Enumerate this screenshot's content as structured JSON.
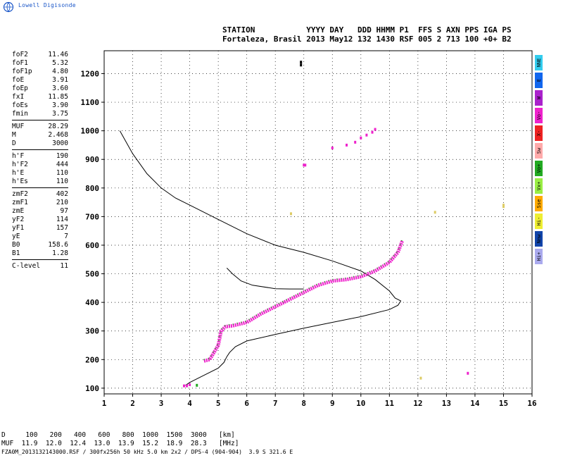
{
  "header": {
    "logo_text": "Lowell Digisonde",
    "station_line1": "STATION           YYYY DAY   DDD HHMM P1  FFS S AXN PPS IGA PS",
    "station_line2": "Fortaleza, Brasil 2013 May12 132 1430 RSF 005 2 713 100 +0+ B2"
  },
  "parameters": [
    [
      {
        "k": "foF2",
        "v": "11.46"
      },
      {
        "k": "foF1",
        "v": "5.32"
      },
      {
        "k": "foF1p",
        "v": "4.80"
      },
      {
        "k": "foE",
        "v": "3.91"
      },
      {
        "k": "foEp",
        "v": "3.60"
      },
      {
        "k": "fxI",
        "v": "11.85"
      },
      {
        "k": "foEs",
        "v": "3.90"
      },
      {
        "k": "fmin",
        "v": "3.75"
      }
    ],
    [
      {
        "k": "MUF",
        "v": "28.29"
      },
      {
        "k": "M",
        "v": "2.468"
      },
      {
        "k": "D",
        "v": "3000"
      }
    ],
    [
      {
        "k": "h'F",
        "v": "190"
      },
      {
        "k": "h'F2",
        "v": "444"
      },
      {
        "k": "h'E",
        "v": "110"
      },
      {
        "k": "h'Es",
        "v": "110"
      }
    ],
    [
      {
        "k": "zmF2",
        "v": "402"
      },
      {
        "k": "zmF1",
        "v": "210"
      },
      {
        "k": "zmE",
        "v": "97"
      },
      {
        "k": "yF2",
        "v": "114"
      },
      {
        "k": "yF1",
        "v": "157"
      },
      {
        "k": "yE",
        "v": "7"
      },
      {
        "k": "B0",
        "v": "158.6"
      },
      {
        "k": "B1",
        "v": "1.28"
      }
    ],
    [
      {
        "k": "C-level",
        "v": "11"
      }
    ]
  ],
  "legend": [
    {
      "label": "NNE",
      "color": "#33ccee"
    },
    {
      "label": "E",
      "color": "#1166ee"
    },
    {
      "label": "W",
      "color": "#aa22cc"
    },
    {
      "label": "Vo-",
      "color": "#ee22cc"
    },
    {
      "label": "X-",
      "color": "#ee2222"
    },
    {
      "label": "Sw",
      "color": "#ffaaaa"
    },
    {
      "label": "Vo+",
      "color": "#22aa22"
    },
    {
      "label": "Vx+",
      "color": "#99ee44"
    },
    {
      "label": "Sse",
      "color": "#ffaa00"
    },
    {
      "label": "Hi-",
      "color": "#eeee33"
    },
    {
      "label": "Nnw",
      "color": "#1144aa"
    },
    {
      "label": "Hi+",
      "color": "#aaaaee"
    }
  ],
  "muf_table": {
    "row_d": "D     100   200   400   600   800  1000  1500  3000   [km]",
    "row_muf": "MUF  11.9  12.0  12.4  13.0  13.9  15.2  18.9  28.3   [MHz]"
  },
  "footer": "FZA0M_2013132143000.RSF / 300fx256h 50 kHz 5.0 km 2x2 / DPS-4 (904-904)  3.9 S 321.6 E",
  "chart_data": {
    "type": "scatter",
    "xlim": [
      1,
      16
    ],
    "ylim": [
      80,
      1280
    ],
    "xticks": [
      1,
      2,
      3,
      4,
      5,
      6,
      7,
      8,
      9,
      10,
      11,
      12,
      13,
      14,
      15,
      16
    ],
    "yticks": [
      100,
      200,
      300,
      400,
      500,
      600,
      700,
      800,
      900,
      1000,
      1100,
      1200
    ],
    "grid": true,
    "series": [
      {
        "type": "line",
        "color": "#000000",
        "points": [
          [
            1.55,
            1000
          ],
          [
            2,
            920
          ],
          [
            2.5,
            850
          ],
          [
            3,
            800
          ],
          [
            3.5,
            765
          ],
          [
            4,
            740
          ],
          [
            5,
            690
          ],
          [
            6,
            640
          ],
          [
            7,
            600
          ],
          [
            8,
            575
          ],
          [
            9,
            545
          ],
          [
            10,
            510
          ],
          [
            10.5,
            480
          ],
          [
            11,
            440
          ],
          [
            11.2,
            415
          ],
          [
            11.4,
            405
          ],
          [
            11.3,
            390
          ],
          [
            11,
            375
          ],
          [
            10,
            350
          ],
          [
            9,
            330
          ],
          [
            8,
            310
          ],
          [
            7,
            288
          ],
          [
            6,
            265
          ],
          [
            5.6,
            245
          ],
          [
            5.4,
            225
          ],
          [
            5.3,
            210
          ],
          [
            5.2,
            190
          ],
          [
            5,
            170
          ],
          [
            4.5,
            145
          ],
          [
            4.2,
            130
          ],
          [
            4,
            120
          ],
          [
            3.85,
            110
          ]
        ]
      },
      {
        "type": "line",
        "color": "#000000",
        "points": [
          [
            5.3,
            520
          ],
          [
            5.5,
            500
          ],
          [
            5.8,
            475
          ],
          [
            6.2,
            460
          ],
          [
            7,
            448
          ],
          [
            7.5,
            447
          ],
          [
            8,
            447
          ]
        ]
      },
      {
        "type": "trace",
        "color": "#ee22cc",
        "accent": "#22aa22",
        "points": [
          [
            4.5,
            195
          ],
          [
            4.7,
            200
          ],
          [
            4.85,
            225
          ],
          [
            5,
            250
          ],
          [
            5.05,
            275
          ],
          [
            5.1,
            300
          ],
          [
            5.25,
            315
          ],
          [
            5.5,
            318
          ],
          [
            6,
            330
          ],
          [
            6.5,
            360
          ],
          [
            7,
            385
          ],
          [
            7.5,
            410
          ],
          [
            8,
            435
          ],
          [
            8.5,
            460
          ],
          [
            9,
            475
          ],
          [
            9.5,
            480
          ],
          [
            10,
            490
          ],
          [
            10.5,
            510
          ],
          [
            11,
            540
          ],
          [
            11.3,
            575
          ],
          [
            11.45,
            615
          ]
        ]
      },
      {
        "type": "points",
        "color": "#ee22cc",
        "points": [
          [
            9,
            940
          ],
          [
            9.5,
            950
          ],
          [
            9.8,
            960
          ],
          [
            10,
            975
          ],
          [
            10.2,
            985
          ],
          [
            10.4,
            995
          ],
          [
            10.5,
            1005
          ],
          [
            8.05,
            880
          ],
          [
            8.0,
            880
          ]
        ]
      },
      {
        "type": "points",
        "color": "#ee22cc",
        "points": [
          [
            3.8,
            108
          ],
          [
            3.9,
            108
          ],
          [
            4,
            112
          ],
          [
            13.75,
            152
          ]
        ]
      },
      {
        "type": "points",
        "color": "#22aa22",
        "points": [
          [
            4.25,
            110
          ]
        ]
      },
      {
        "type": "points",
        "color": "#000000",
        "points": [
          [
            7.9,
            1240
          ],
          [
            7.9,
            1230
          ]
        ]
      },
      {
        "type": "points",
        "color": "#ddcc66",
        "points": [
          [
            7.55,
            710
          ],
          [
            12.6,
            715
          ],
          [
            15,
            740
          ],
          [
            15,
            735
          ],
          [
            12.1,
            135
          ]
        ]
      }
    ]
  }
}
